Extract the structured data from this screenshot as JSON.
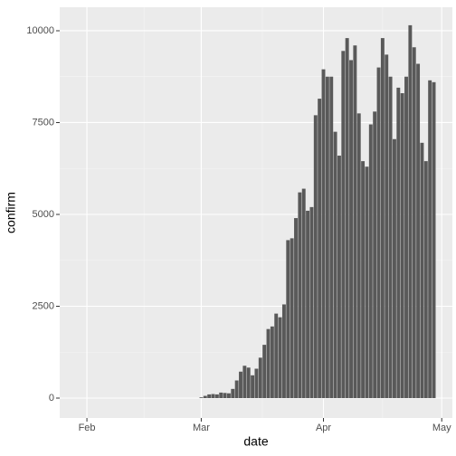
{
  "chart_data": {
    "type": "bar",
    "x_label": "date",
    "y_label": "confirm",
    "x": [
      29,
      30,
      31,
      32,
      33,
      34,
      35,
      36,
      37,
      38,
      39,
      40,
      41,
      42,
      43,
      44,
      45,
      46,
      47,
      48,
      49,
      50,
      51,
      52,
      53,
      54,
      55,
      56,
      57,
      58,
      59,
      60,
      61,
      62,
      63,
      64,
      65,
      66,
      67,
      68,
      69,
      70,
      71,
      72,
      73,
      74,
      75,
      76,
      77,
      78,
      79,
      80,
      81,
      82,
      83,
      84,
      85,
      86,
      87,
      88
    ],
    "values": [
      20,
      60,
      100,
      110,
      100,
      150,
      140,
      130,
      250,
      480,
      720,
      880,
      830,
      620,
      800,
      1100,
      1450,
      1880,
      1950,
      2300,
      2200,
      2550,
      4300,
      4350,
      4900,
      5600,
      5700,
      5100,
      5200,
      7700,
      8150,
      8950,
      8750,
      8750,
      7250,
      6600,
      9450,
      9800,
      9200,
      9600,
      7750,
      6450,
      6300,
      7450,
      7800,
      9000,
      9800,
      9350,
      8750,
      7050,
      8450,
      8300,
      8750,
      10150,
      9550,
      9100,
      6950,
      6450,
      8650,
      8600
    ],
    "color": "#595959",
    "xlim": [
      -6.9,
      92.7
    ],
    "xticks": [
      {
        "value": 0,
        "label": "Feb"
      },
      {
        "value": 29,
        "label": "Mar"
      },
      {
        "value": 60,
        "label": "Apr"
      },
      {
        "value": 90,
        "label": "May"
      }
    ],
    "ylim": [
      -542,
      10640
    ],
    "yticks": [
      0,
      2500,
      5000,
      7500,
      10000
    ],
    "grid": true
  }
}
